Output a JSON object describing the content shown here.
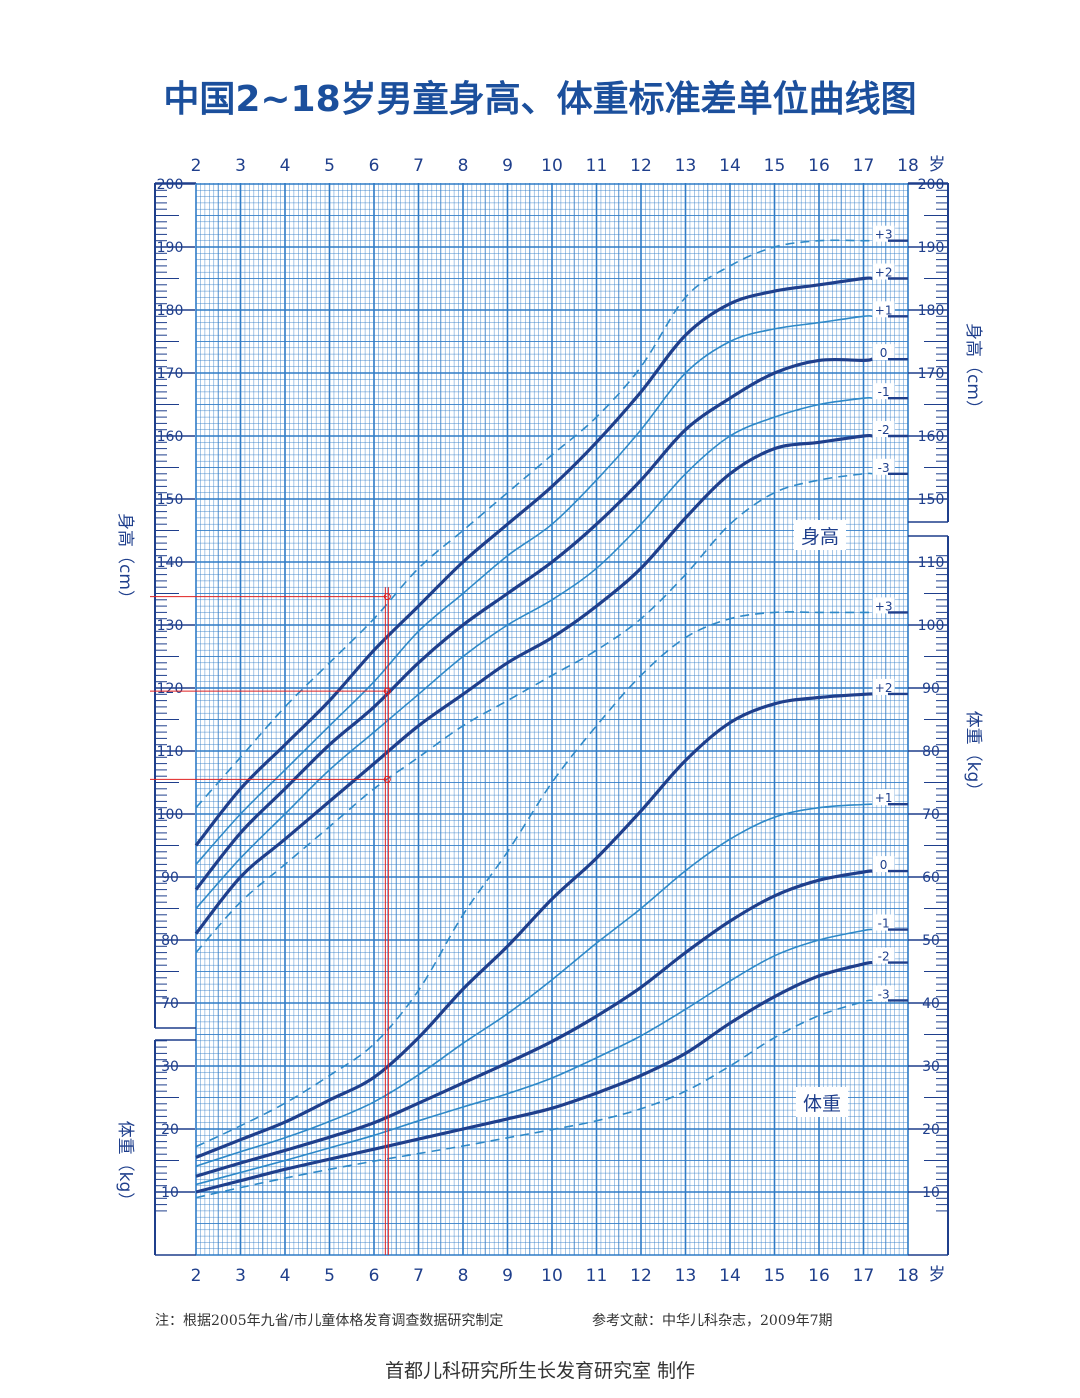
{
  "title": "中国2~18岁男童身高、体重标准差单位曲线图",
  "note": "注：根据2005年九省/市儿童体格发育调查数据研究制定",
  "reference": "参考文献：中华儿科杂志，2009年7期",
  "footer": "首都儿科研究所生长发育研究室  制作",
  "colors": {
    "grid": "#2f7bc6",
    "thick": "#1f3f8c",
    "thin": "#2e89c8",
    "marker": "#e02020"
  },
  "chart_data": {
    "type": "line",
    "x_unit": "岁",
    "x_ticks": [
      "2",
      "3",
      "4",
      "5",
      "6",
      "7",
      "8",
      "9",
      "10",
      "11",
      "12",
      "13",
      "14",
      "15",
      "16",
      "17",
      "18"
    ],
    "height_axis": {
      "label": "身高（cm）",
      "tick_labels": [
        "70",
        "80",
        "90",
        "100",
        "110",
        "120",
        "130",
        "140",
        "150",
        "160",
        "170",
        "180",
        "190",
        "200"
      ],
      "range": [
        70,
        200
      ]
    },
    "weight_axis_left": {
      "label": "体重（kg）",
      "tick_labels": [
        "10",
        "20",
        "30"
      ]
    },
    "weight_axis_right": {
      "label": "体重（kg）",
      "tick_labels": [
        "10",
        "20",
        "30",
        "40",
        "50",
        "60",
        "70",
        "80",
        "90",
        "100",
        "110"
      ]
    },
    "height_label": "身高",
    "weight_label": "体重",
    "height_series": [
      {
        "name": "+3",
        "style": "dashed",
        "x": [
          2,
          3,
          4,
          5,
          6,
          7,
          8,
          9,
          10,
          11,
          12,
          13,
          14,
          15,
          16,
          17,
          18
        ],
        "y": [
          101,
          109,
          117,
          124,
          131,
          139,
          145,
          151,
          157,
          163,
          171,
          182,
          187,
          190,
          191,
          191,
          191
        ]
      },
      {
        "name": "+2",
        "style": "thick",
        "x": [
          2,
          3,
          4,
          5,
          6,
          7,
          8,
          9,
          10,
          11,
          12,
          13,
          14,
          15,
          16,
          17,
          18
        ],
        "y": [
          95,
          104,
          111,
          118,
          126,
          133,
          140,
          146,
          152,
          159,
          167,
          176,
          181,
          183,
          184,
          185,
          185
        ]
      },
      {
        "name": "+1",
        "style": "thin",
        "x": [
          2,
          3,
          4,
          5,
          6,
          7,
          8,
          9,
          10,
          11,
          12,
          13,
          14,
          15,
          16,
          17,
          18
        ],
        "y": [
          92,
          100,
          107,
          114,
          121,
          129,
          135,
          141,
          146,
          153,
          161,
          170,
          175,
          177,
          178,
          179,
          179
        ]
      },
      {
        "name": "0",
        "style": "thick",
        "x": [
          2,
          3,
          4,
          5,
          6,
          7,
          8,
          9,
          10,
          11,
          12,
          13,
          14,
          15,
          16,
          17,
          18
        ],
        "y": [
          88,
          97,
          104,
          111,
          117,
          124,
          130,
          135,
          140,
          146,
          153,
          161,
          166,
          170,
          172,
          172,
          173
        ]
      },
      {
        "name": "-1",
        "style": "thin",
        "x": [
          2,
          3,
          4,
          5,
          6,
          7,
          8,
          9,
          10,
          11,
          12,
          13,
          14,
          15,
          16,
          17,
          18
        ],
        "y": [
          85,
          93,
          100,
          107,
          113,
          119,
          125,
          130,
          134,
          139,
          146,
          154,
          160,
          163,
          165,
          166,
          166
        ]
      },
      {
        "name": "-2",
        "style": "thick",
        "x": [
          2,
          3,
          4,
          5,
          6,
          7,
          8,
          9,
          10,
          11,
          12,
          13,
          14,
          15,
          16,
          17,
          18
        ],
        "y": [
          81,
          90,
          96,
          102,
          108,
          114,
          119,
          124,
          128,
          133,
          139,
          147,
          154,
          158,
          159,
          160,
          160
        ]
      },
      {
        "name": "-3",
        "style": "dashed",
        "x": [
          2,
          3,
          4,
          5,
          6,
          7,
          8,
          9,
          10,
          11,
          12,
          13,
          14,
          15,
          16,
          17,
          18
        ],
        "y": [
          78,
          86,
          92,
          98,
          104,
          109,
          114,
          118,
          122,
          126,
          131,
          138,
          146,
          151,
          153,
          154,
          154
        ]
      }
    ],
    "weight_series": [
      {
        "name": "+3",
        "style": "dashed",
        "x": [
          2,
          3,
          4,
          5,
          6,
          7,
          8,
          9,
          10,
          11,
          12,
          13,
          14,
          15,
          16,
          17,
          18
        ],
        "y": [
          17.2,
          20.5,
          24.1,
          28.5,
          33.5,
          42,
          54,
          64,
          75,
          84,
          92,
          98,
          101,
          102,
          102,
          102,
          102
        ]
      },
      {
        "name": "+2",
        "style": "thick",
        "x": [
          2,
          3,
          4,
          5,
          6,
          7,
          8,
          9,
          10,
          11,
          12,
          13,
          14,
          15,
          16,
          17,
          18
        ],
        "y": [
          15.5,
          18.3,
          21.1,
          24.6,
          28.2,
          34.5,
          42.2,
          49,
          56.5,
          63,
          70.5,
          78.5,
          84.5,
          87.5,
          88.5,
          89,
          89.3
        ]
      },
      {
        "name": "+1",
        "style": "thin",
        "x": [
          2,
          3,
          4,
          5,
          6,
          7,
          8,
          9,
          10,
          11,
          12,
          13,
          14,
          15,
          16,
          17,
          18
        ],
        "y": [
          14.1,
          16.4,
          18.6,
          21.2,
          24.3,
          28.6,
          33.6,
          38.3,
          43.7,
          49.5,
          55,
          61,
          66,
          69.5,
          71,
          71.5,
          71.8
        ]
      },
      {
        "name": "0",
        "style": "thick",
        "x": [
          2,
          3,
          4,
          5,
          6,
          7,
          8,
          9,
          10,
          11,
          12,
          13,
          14,
          15,
          16,
          17,
          18
        ],
        "y": [
          12.5,
          14.6,
          16.6,
          18.7,
          21,
          24.1,
          27.3,
          30.5,
          33.9,
          37.9,
          42.5,
          48,
          53,
          57,
          59.5,
          60.8,
          61.5
        ]
      },
      {
        "name": "-1",
        "style": "thin",
        "x": [
          2,
          3,
          4,
          5,
          6,
          7,
          8,
          9,
          10,
          11,
          12,
          13,
          14,
          15,
          16,
          17,
          18
        ],
        "y": [
          11.2,
          13.1,
          15,
          17,
          19,
          21.3,
          23.5,
          25.6,
          28.1,
          31.3,
          34.8,
          39,
          43.5,
          47.5,
          50,
          51.5,
          52.3
        ]
      },
      {
        "name": "-2",
        "style": "thick",
        "x": [
          2,
          3,
          4,
          5,
          6,
          7,
          8,
          9,
          10,
          11,
          12,
          13,
          14,
          15,
          16,
          17,
          18
        ],
        "y": [
          10,
          11.8,
          13.6,
          15.2,
          16.8,
          18.4,
          20,
          21.6,
          23.3,
          25.7,
          28.5,
          32,
          36.8,
          41,
          44.3,
          46.2,
          47.3
        ]
      },
      {
        "name": "-3",
        "style": "dashed",
        "x": [
          2,
          3,
          4,
          5,
          6,
          7,
          8,
          9,
          10,
          11,
          12,
          13,
          14,
          15,
          16,
          17,
          18
        ],
        "y": [
          9.1,
          10.7,
          12.2,
          13.6,
          14.9,
          16.1,
          17.3,
          18.6,
          19.9,
          21.3,
          23.2,
          26,
          30,
          34.5,
          38,
          40.2,
          41.2
        ]
      }
    ],
    "height_marker": {
      "age": 6.3,
      "heights": [
        134.5,
        119.5,
        105.5
      ]
    }
  }
}
